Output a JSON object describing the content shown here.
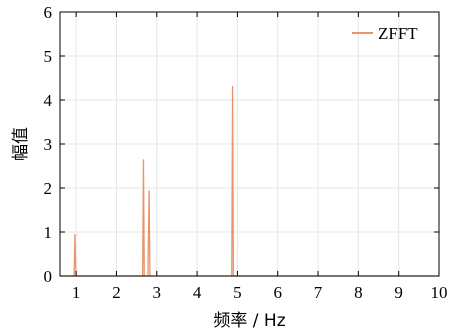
{
  "chart_data": {
    "type": "line",
    "title": "",
    "xlabel": "频率 / Hz",
    "ylabel": "幅值",
    "xlim": [
      0.6,
      10
    ],
    "ylim": [
      0,
      6
    ],
    "x_ticks": [
      1,
      2,
      3,
      4,
      5,
      6,
      7,
      8,
      9,
      10
    ],
    "y_ticks": [
      0,
      1,
      2,
      3,
      4,
      5,
      6
    ],
    "grid": true,
    "legend_position": "top-right",
    "series": [
      {
        "name": "ZFFT",
        "color": "#E8956B",
        "x": [
          0.6,
          0.95,
          0.97,
          0.99,
          1.0,
          1.05,
          2.6,
          2.65,
          2.67,
          2.69,
          2.74,
          2.78,
          2.81,
          2.83,
          2.86,
          4.8,
          4.86,
          4.88,
          4.9,
          4.95,
          10.0
        ],
        "y": [
          0,
          0,
          0.95,
          0.2,
          0,
          0,
          0,
          0,
          2.65,
          0,
          0,
          0,
          1.95,
          0,
          0,
          0,
          0,
          4.32,
          0,
          0,
          0
        ]
      }
    ]
  }
}
